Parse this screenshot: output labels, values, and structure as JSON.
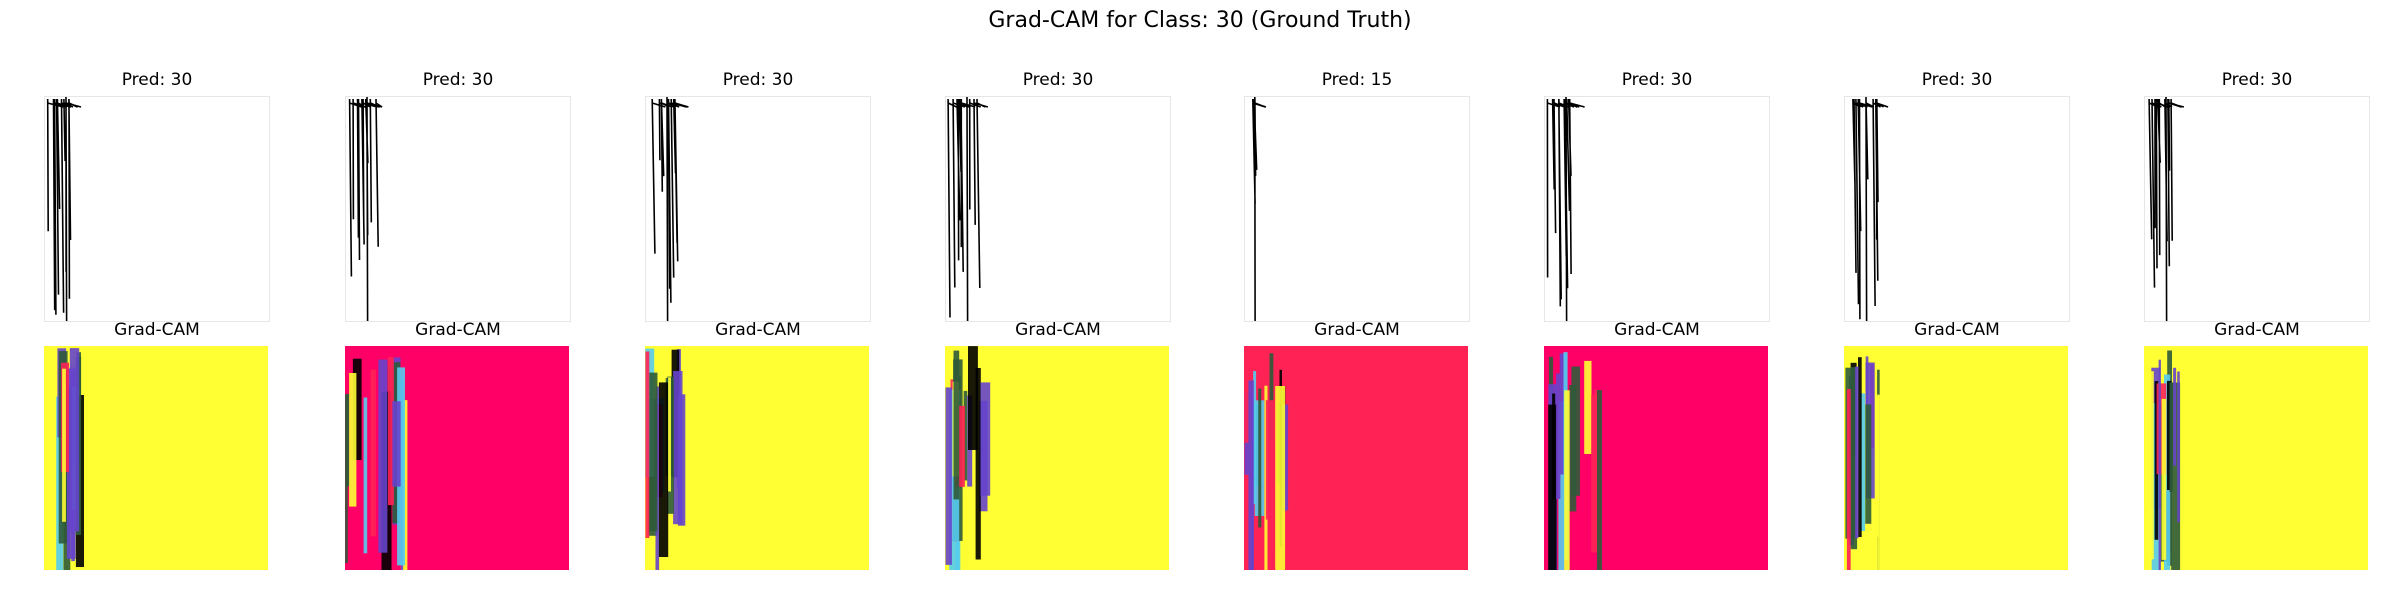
{
  "figure": {
    "title": "Grad-CAM for Class: 30 (Ground Truth)"
  },
  "colors": {
    "yellow": "#ffff33",
    "magenta": "#ff0066",
    "rose": "#ff2255",
    "green": "#2f5a3a",
    "purple": "#6644cc",
    "cyan": "#55ccee",
    "ink": "#000000"
  },
  "chart_data": {
    "type": "image-grid",
    "true_class": 30,
    "panels": [
      {
        "pred_label": "Pred: 30",
        "pred": 30,
        "cam_label": "Grad-CAM",
        "cam_bg": "yellow"
      },
      {
        "pred_label": "Pred: 30",
        "pred": 30,
        "cam_label": "Grad-CAM",
        "cam_bg": "magenta"
      },
      {
        "pred_label": "Pred: 30",
        "pred": 30,
        "cam_label": "Grad-CAM",
        "cam_bg": "yellow"
      },
      {
        "pred_label": "Pred: 30",
        "pred": 30,
        "cam_label": "Grad-CAM",
        "cam_bg": "yellow"
      },
      {
        "pred_label": "Pred: 15",
        "pred": 15,
        "cam_label": "Grad-CAM",
        "cam_bg": "rose"
      },
      {
        "pred_label": "Pred: 30",
        "pred": 30,
        "cam_label": "Grad-CAM",
        "cam_bg": "magenta"
      },
      {
        "pred_label": "Pred: 30",
        "pred": 30,
        "cam_label": "Grad-CAM",
        "cam_bg": "yellow"
      },
      {
        "pred_label": "Pred: 30",
        "pred": 30,
        "cam_label": "Grad-CAM",
        "cam_bg": "yellow"
      }
    ]
  }
}
